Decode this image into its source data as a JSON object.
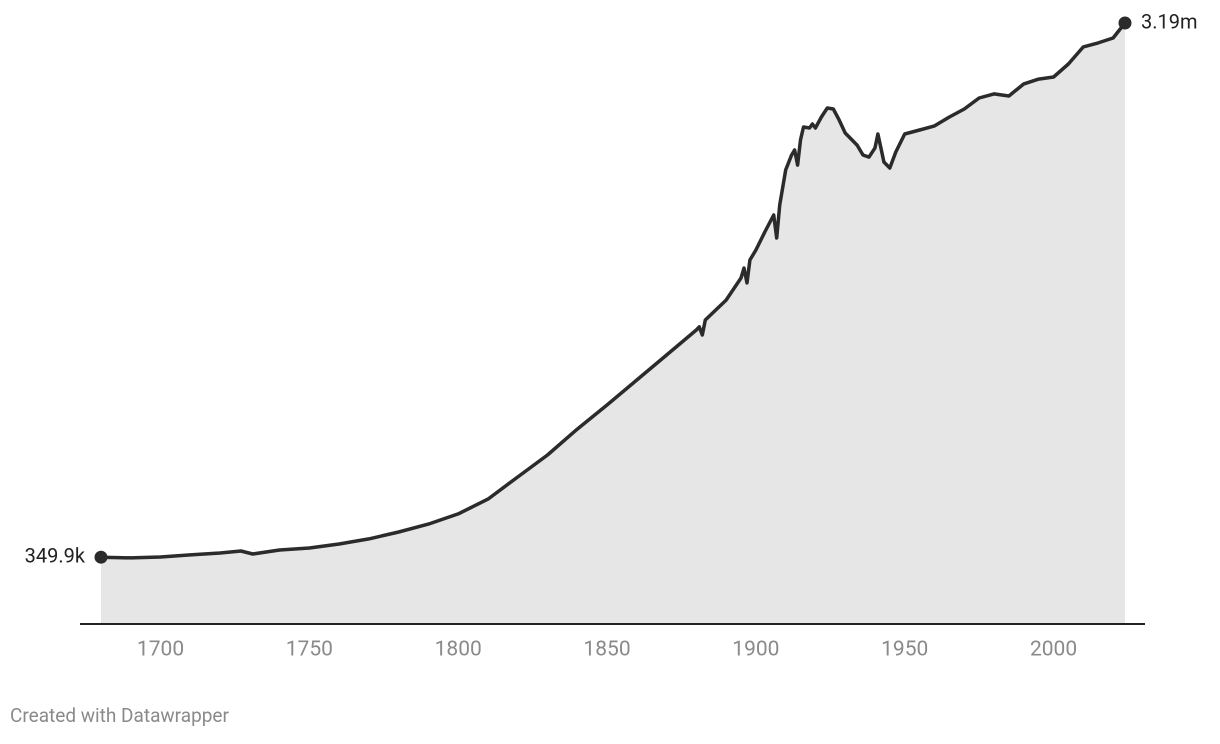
{
  "chart_data": {
    "type": "area",
    "x": [
      1680,
      1690,
      1700,
      1710,
      1720,
      1727,
      1731,
      1740,
      1750,
      1760,
      1770,
      1780,
      1790,
      1800,
      1810,
      1820,
      1830,
      1840,
      1850,
      1860,
      1870,
      1880,
      1881,
      1882,
      1883,
      1890,
      1895,
      1896,
      1897,
      1898,
      1900,
      1903,
      1906,
      1907,
      1908,
      1910,
      1912,
      1913,
      1914,
      1915,
      1916,
      1918,
      1919,
      1920,
      1922,
      1924,
      1926,
      1928,
      1930,
      1934,
      1936,
      1938,
      1940,
      1941,
      1942,
      1943,
      1945,
      1947,
      1950,
      1955,
      1960,
      1965,
      1970,
      1975,
      1980,
      1985,
      1990,
      1995,
      2000,
      2005,
      2010,
      2015,
      2020,
      2024
    ],
    "values": [
      349900,
      346000,
      351000,
      362000,
      372000,
      383000,
      367000,
      388000,
      399000,
      420000,
      447000,
      484000,
      526000,
      580000,
      659000,
      776000,
      893000,
      1031000,
      1159000,
      1292000,
      1425000,
      1558000,
      1574000,
      1531000,
      1611000,
      1717000,
      1834000,
      1887000,
      1808000,
      1930000,
      1983000,
      2079000,
      2169000,
      2047000,
      2222000,
      2409000,
      2488000,
      2515000,
      2435000,
      2568000,
      2637000,
      2632000,
      2653000,
      2632000,
      2690000,
      2738000,
      2733000,
      2674000,
      2605000,
      2541000,
      2488000,
      2477000,
      2526000,
      2600000,
      2526000,
      2451000,
      2419000,
      2504000,
      2600000,
      2621000,
      2643000,
      2690000,
      2733000,
      2791000,
      2813000,
      2802000,
      2866000,
      2892000,
      2903000,
      2972000,
      3063000,
      3084000,
      3110000,
      3190000
    ],
    "value_labels": [
      "349.9k",
      null,
      null,
      null,
      null,
      null,
      null,
      null,
      null,
      null,
      null,
      null,
      null,
      null,
      null,
      null,
      null,
      null,
      null,
      null,
      null,
      null,
      null,
      null,
      null,
      null,
      null,
      null,
      null,
      null,
      null,
      null,
      null,
      null,
      null,
      null,
      null,
      null,
      null,
      null,
      null,
      null,
      null,
      null,
      null,
      null,
      null,
      null,
      null,
      null,
      null,
      null,
      null,
      null,
      null,
      null,
      null,
      null,
      null,
      null,
      null,
      null,
      null,
      null,
      null,
      null,
      null,
      null,
      null,
      null,
      null,
      null,
      null,
      "3.19m"
    ],
    "color": "#2b2b2b",
    "fill_color": "#e6e6e6",
    "xlim": [
      1680,
      2024
    ],
    "xticks": [
      1700,
      1750,
      1800,
      1850,
      1900,
      1950,
      2000
    ],
    "ylim": [
      0,
      3190000
    ],
    "credit": "Created with Datawrapper"
  }
}
